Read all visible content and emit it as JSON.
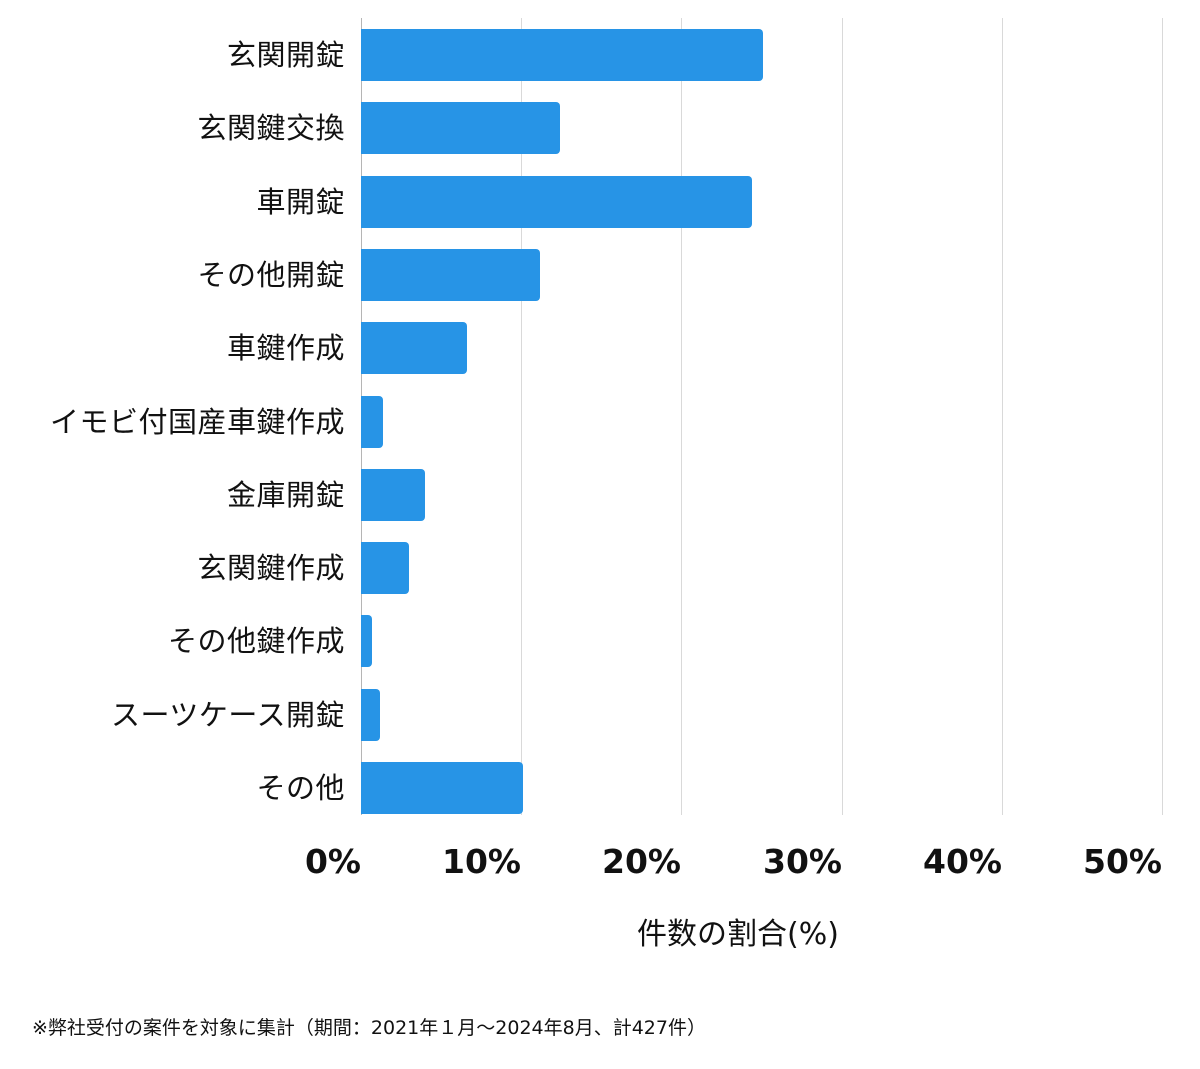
{
  "chart_data": {
    "type": "bar",
    "orientation": "horizontal",
    "title": "",
    "xlabel": "件数の割合(%)",
    "ylabel": "",
    "xlim": [
      0,
      50
    ],
    "x_ticks": [
      "0%",
      "10%",
      "20%",
      "30%",
      "40%",
      "50%"
    ],
    "grid": true,
    "legend": null,
    "categories": [
      "玄関開錠",
      "玄関鍵交換",
      "車開錠",
      "その他開錠",
      "車鍵作成",
      "イモビ付国産車鍵作成",
      "金庫開錠",
      "玄関鍵作成",
      "その他鍵作成",
      "スーツケース開錠",
      "その他"
    ],
    "values": [
      25.1,
      12.4,
      24.4,
      11.2,
      6.6,
      1.4,
      4.0,
      3.0,
      0.7,
      1.2,
      10.1
    ],
    "bar_color": "#2794e6",
    "footnote": "※弊社受付の案件を対象に集計（期間：2021年１月〜2024年8月、計427件）"
  },
  "colors": {
    "bar": "#2794e6",
    "gridline": "#d9d9d9",
    "axis": "#b5b5b5",
    "text": "#111111"
  }
}
